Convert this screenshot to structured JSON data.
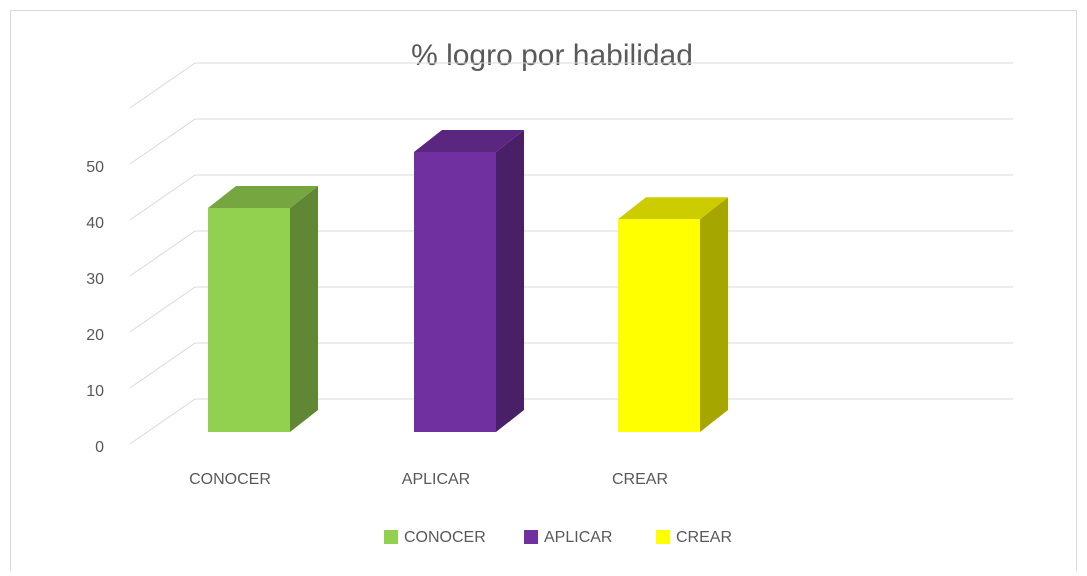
{
  "chart_data": {
    "type": "bar3d",
    "title": "% logro por habilidad",
    "categories": [
      "CONOCER",
      "APLICAR",
      "CREAR"
    ],
    "values": [
      40,
      50,
      38
    ],
    "colors": [
      "#92d050",
      "#7030a0",
      "#ffff00"
    ],
    "ylim": [
      0,
      60
    ],
    "yticks": [
      0,
      10,
      20,
      30,
      40,
      50
    ],
    "grid": true,
    "legend": "bottom"
  }
}
